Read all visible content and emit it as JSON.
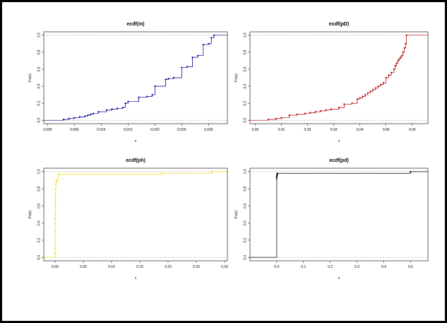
{
  "chart_data": [
    {
      "type": "line",
      "step": true,
      "title": "ecdf(m)",
      "xlabel": "x",
      "ylabel": "Fn(x)",
      "xlim": [
        -0.0007,
        0.0335
      ],
      "ylim": [
        -0.04,
        1.04
      ],
      "xticks": [
        0.0,
        0.005,
        0.01,
        0.015,
        0.02,
        0.025,
        0.03
      ],
      "xtick_labels": [
        "0.000",
        "0.005",
        "0.010",
        "0.015",
        "0.020",
        "0.025",
        "0.030"
      ],
      "yticks": [
        0.0,
        0.2,
        0.4,
        0.6,
        0.8,
        1.0
      ],
      "ytick_labels": [
        "0.0",
        "0.2",
        "0.4",
        "0.6",
        "0.8",
        "1.0"
      ],
      "color": "#00008b",
      "x": [
        0.003,
        0.004,
        0.005,
        0.006,
        0.007,
        0.0075,
        0.008,
        0.0085,
        0.0095,
        0.011,
        0.012,
        0.013,
        0.014,
        0.0145,
        0.015,
        0.017,
        0.0185,
        0.0195,
        0.02,
        0.022,
        0.0225,
        0.0235,
        0.025,
        0.026,
        0.027,
        0.028,
        0.029,
        0.03,
        0.0305,
        0.031
      ],
      "y": [
        0.01,
        0.02,
        0.03,
        0.04,
        0.05,
        0.06,
        0.07,
        0.08,
        0.1,
        0.12,
        0.13,
        0.14,
        0.15,
        0.2,
        0.22,
        0.27,
        0.28,
        0.3,
        0.4,
        0.48,
        0.49,
        0.5,
        0.62,
        0.63,
        0.74,
        0.76,
        0.89,
        0.9,
        0.97,
        1.0
      ]
    },
    {
      "type": "line",
      "step": true,
      "title": "ecdf(pD)",
      "xlabel": "x",
      "ylabel": "Fn(x)",
      "xlim": [
        -0.002,
        0.066
      ],
      "ylim": [
        -0.04,
        1.04
      ],
      "xticks": [
        0.0,
        0.01,
        0.02,
        0.03,
        0.04,
        0.05,
        0.06
      ],
      "xtick_labels": [
        "0.00",
        "0.01",
        "0.02",
        "0.03",
        "0.04",
        "0.05",
        "0.06"
      ],
      "yticks": [
        0.0,
        0.2,
        0.4,
        0.6,
        0.8,
        1.0
      ],
      "ytick_labels": [
        "0.0",
        "0.2",
        "0.4",
        "0.6",
        "0.8",
        "1.0"
      ],
      "color": "#b40000",
      "x": [
        0.005,
        0.008,
        0.01,
        0.013,
        0.016,
        0.019,
        0.021,
        0.023,
        0.025,
        0.027,
        0.029,
        0.032,
        0.034,
        0.037,
        0.039,
        0.04,
        0.041,
        0.042,
        0.043,
        0.044,
        0.045,
        0.046,
        0.047,
        0.048,
        0.049,
        0.05,
        0.051,
        0.052,
        0.053,
        0.0535,
        0.054,
        0.0545,
        0.055,
        0.0555,
        0.056,
        0.0565,
        0.057,
        0.0575,
        0.0578
      ],
      "y": [
        0.01,
        0.02,
        0.03,
        0.06,
        0.07,
        0.08,
        0.09,
        0.1,
        0.11,
        0.12,
        0.13,
        0.15,
        0.19,
        0.2,
        0.25,
        0.26,
        0.28,
        0.3,
        0.32,
        0.34,
        0.36,
        0.38,
        0.4,
        0.42,
        0.44,
        0.5,
        0.53,
        0.56,
        0.6,
        0.64,
        0.67,
        0.7,
        0.72,
        0.74,
        0.76,
        0.8,
        0.85,
        0.9,
        1.0
      ]
    },
    {
      "type": "line",
      "step": true,
      "title": "ecdf(ph)",
      "xlabel": "x",
      "ylabel": "Fn(x)",
      "xlim": [
        -0.02,
        0.305
      ],
      "ylim": [
        -0.04,
        1.04
      ],
      "xticks": [
        0.0,
        0.05,
        0.1,
        0.15,
        0.2,
        0.25,
        0.3
      ],
      "xtick_labels": [
        "0.00",
        "0.05",
        "0.10",
        "0.15",
        "0.20",
        "0.25",
        "0.30"
      ],
      "yticks": [
        0.0,
        0.2,
        0.4,
        0.6,
        0.8,
        1.0
      ],
      "ytick_labels": [
        "0.0",
        "0.2",
        "0.4",
        "0.6",
        "0.8",
        "1.0"
      ],
      "color": "#f0e020",
      "x": [
        0.0,
        0.0,
        0.0001,
        0.0001,
        0.0002,
        0.0002,
        0.0003,
        0.0004,
        0.0005,
        0.0006,
        0.0008,
        0.001,
        0.0015,
        0.002,
        0.003,
        0.006,
        0.19,
        0.278
      ],
      "y": [
        0.05,
        0.1,
        0.2,
        0.3,
        0.4,
        0.45,
        0.5,
        0.6,
        0.65,
        0.7,
        0.75,
        0.8,
        0.85,
        0.88,
        0.9,
        0.97,
        0.98,
        1.0
      ]
    },
    {
      "type": "line",
      "step": true,
      "title": "ecdf(pd)",
      "xlabel": "x",
      "ylabel": "Fn(x)",
      "xlim": [
        -0.1,
        0.565
      ],
      "ylim": [
        -0.04,
        1.04
      ],
      "xticks": [
        0.0,
        0.1,
        0.2,
        0.3,
        0.4,
        0.5
      ],
      "xtick_labels": [
        "0.0",
        "0.1",
        "0.2",
        "0.3",
        "0.4",
        "0.5"
      ],
      "yticks": [
        0.0,
        0.2,
        0.4,
        0.6,
        0.8,
        1.0
      ],
      "ytick_labels": [
        "0.0",
        "0.2",
        "0.4",
        "0.6",
        "0.8",
        "1.0"
      ],
      "color": "#000000",
      "x": [
        0.0,
        0.0,
        0.0005,
        0.001,
        0.0015,
        0.002,
        0.5
      ],
      "y": [
        0.92,
        0.94,
        0.95,
        0.96,
        0.97,
        0.98,
        1.0
      ]
    }
  ]
}
